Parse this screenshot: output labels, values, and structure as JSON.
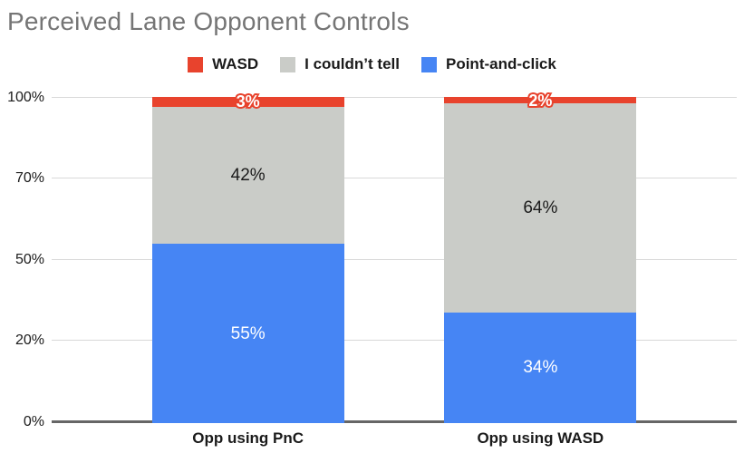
{
  "title": "Perceived Lane Opponent Controls",
  "legend": {
    "position": "top",
    "items": [
      {
        "label": "WASD",
        "color": "#E8432D"
      },
      {
        "label": "I couldn’t tell",
        "color": "#CACCC8"
      },
      {
        "label": "Point-and-click",
        "color": "#4685F4"
      }
    ]
  },
  "chart_data": {
    "type": "bar",
    "stacked": true,
    "units": "percent",
    "title": "Perceived Lane Opponent Controls",
    "categories": [
      "Opp using PnC",
      "Opp using WASD"
    ],
    "series": [
      {
        "name": "Point-and-click",
        "values": [
          55,
          34
        ],
        "color": "#4685F4",
        "label_color": "#FFFFFF",
        "label_outline": false
      },
      {
        "name": "I couldn’t tell",
        "values": [
          42,
          64
        ],
        "color": "#CACCC8",
        "label_color": "#1B1B1B",
        "label_outline": false
      },
      {
        "name": "WASD",
        "values": [
          3,
          2
        ],
        "color": "#E8432D",
        "label_color": "#FFFFFF",
        "label_outline": true
      }
    ],
    "stack_order_bottom_to_top": [
      "Point-and-click",
      "I couldn’t tell",
      "WASD"
    ],
    "value_label_suffix": "%",
    "y_axis": {
      "tick_labels_top_to_bottom": [
        "100%",
        "70%",
        "50%",
        "20%",
        "0%"
      ],
      "range": [
        0,
        100
      ],
      "gridlines": true
    },
    "x_axis": {
      "labels": [
        "Opp using PnC",
        "Opp using WASD"
      ]
    },
    "legend_entries": [
      "WASD",
      "I couldn’t tell",
      "Point-and-click"
    ],
    "legend_position": "top"
  },
  "colors": {
    "title_text": "#757575",
    "label_text": "#1B1B1B",
    "gridline": "#D9D9D9",
    "axis_line": "#666666",
    "background": "#FFFFFF"
  }
}
